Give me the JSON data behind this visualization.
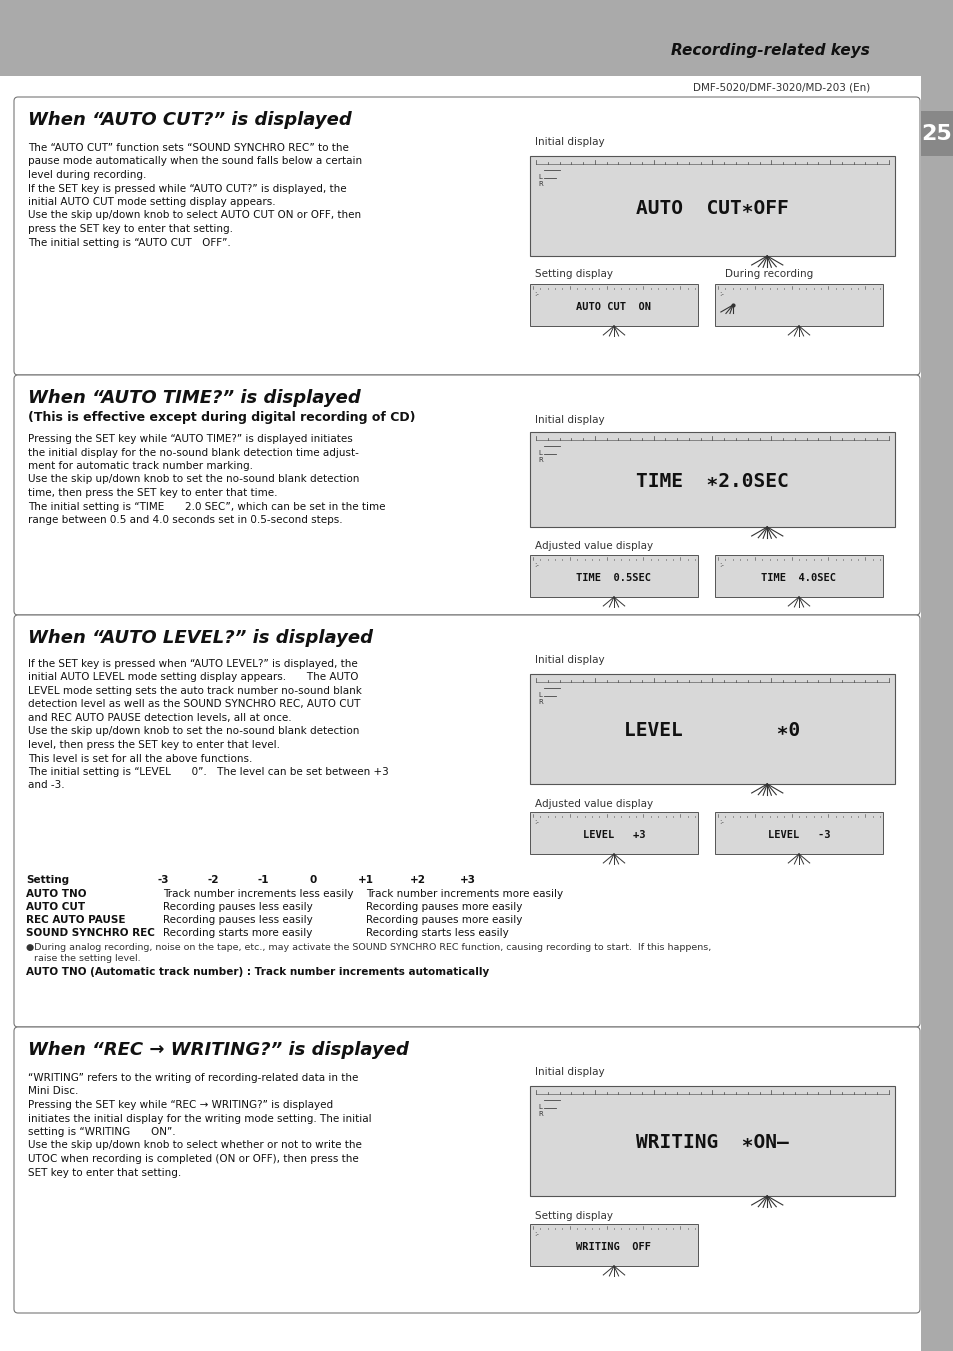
{
  "page_bg": "#aaaaaa",
  "content_bg": "#ffffff",
  "page_number": "25",
  "header_text": "Recording-related keys",
  "subheader_text": "DMF-5020/DMF-3020/MD-203 (En)",
  "sec1": {
    "title": "When “AUTO CUT?” is displayed",
    "body": [
      "The “AUTO CUT” function sets “SOUND SYNCHRO REC” to the",
      "pause mode automatically when the sound falls below a certain",
      "level during recording.",
      "If the SET key is pressed while “AUTO CUT?” is displayed, the",
      "initial AUTO CUT mode setting display appears.",
      "Use the skip up/down knob to select AUTO CUT ON or OFF, then",
      "press the SET key to enter that setting.",
      "The initial setting is “AUTO CUT OFF”."
    ],
    "lcd_main": "AUTO  CUT∗OFF",
    "lcd_left": "AUTO CUT  ON",
    "lcd_left_label": "Setting display",
    "lcd_right_label": "During recording",
    "lcd_right_empty": true
  },
  "sec2": {
    "title": "When “AUTO TIME?” is displayed",
    "subtitle": "(This is effective except during digital recording of CD)",
    "body": [
      "Pressing the SET key while “AUTO TIME?” is displayed initiates",
      "the initial display for the no-sound blank detection time adjust-",
      "ment for automatic track number marking.",
      "Use the skip up/down knob to set the no-sound blank detection",
      "time, then press the SET key to enter that time.",
      "The initial setting is “TIME  2.0 SEC”, which can be set in the time",
      "range between 0.5 and 4.0 seconds set in 0.5-second steps."
    ],
    "lcd_main": "TIME  ∗2.0SEC",
    "lcd_left": "TIME  0.5SEC",
    "lcd_right": "TIME  4.0SEC",
    "lcd_pair_label": "Adjusted value display"
  },
  "sec3": {
    "title": "When “AUTO LEVEL?” is displayed",
    "body": [
      "If the SET key is pressed when “AUTO LEVEL?” is displayed, the",
      "initial AUTO LEVEL mode setting display appears.  The AUTO",
      "LEVEL mode setting sets the auto track number no-sound blank",
      "detection level as well as the SOUND SYNCHRO REC, AUTO CUT",
      "and REC AUTO PAUSE detection levels, all at once.",
      "Use the skip up/down knob to set the no-sound blank detection",
      "level, then press the SET key to enter that level.",
      "This level is set for all the above functions.",
      "The initial setting is “LEVEL  0”. The level can be set between +3",
      "and -3."
    ],
    "lcd_main": "LEVEL        ∗0",
    "lcd_left": "LEVEL   +3",
    "lcd_right": "LEVEL   -3",
    "lcd_pair_label": "Adjusted value display",
    "table_headers": [
      "Setting",
      "-3",
      "-2",
      "-1",
      "0",
      "+1",
      "+2",
      "+3"
    ],
    "table_rows": [
      [
        "AUTO TNO",
        "Track number increments less easily",
        "Track number increments more easily"
      ],
      [
        "AUTO CUT",
        "Recording pauses less easily",
        "Recording pauses more easily"
      ],
      [
        "REC AUTO PAUSE",
        "Recording pauses less easily",
        "Recording pauses more easily"
      ],
      [
        "SOUND SYNCHRO REC",
        "Recording starts more easily",
        "Recording starts less easily"
      ]
    ],
    "note1": "●During analog recording, noise on the tape, etc., may activate the SOUND SYNCHRO REC function, causing recording to start.  If this happens,",
    "note2": "raise the setting level.",
    "note3": "AUTO TNO (Automatic track number) : Track number increments automatically"
  },
  "sec4": {
    "title": "When “REC → WRITING?” is displayed",
    "body": [
      "“WRITING” refers to the writing of recording-related data in the",
      "Mini Disc.",
      "Pressing the SET key while “REC → WRITING?” is displayed",
      "initiates the initial display for the writing mode setting. The initial",
      "setting is “WRITING  ON”.",
      "Use the skip up/down knob to select whether or not to write the",
      "UTOC when recording is completed (ON or OFF), then press the",
      "SET key to enter that setting."
    ],
    "lcd_main": "WRITING  ∗ON–",
    "lcd_left": "WRITING  OFF",
    "lcd_left_label": "Setting display"
  }
}
